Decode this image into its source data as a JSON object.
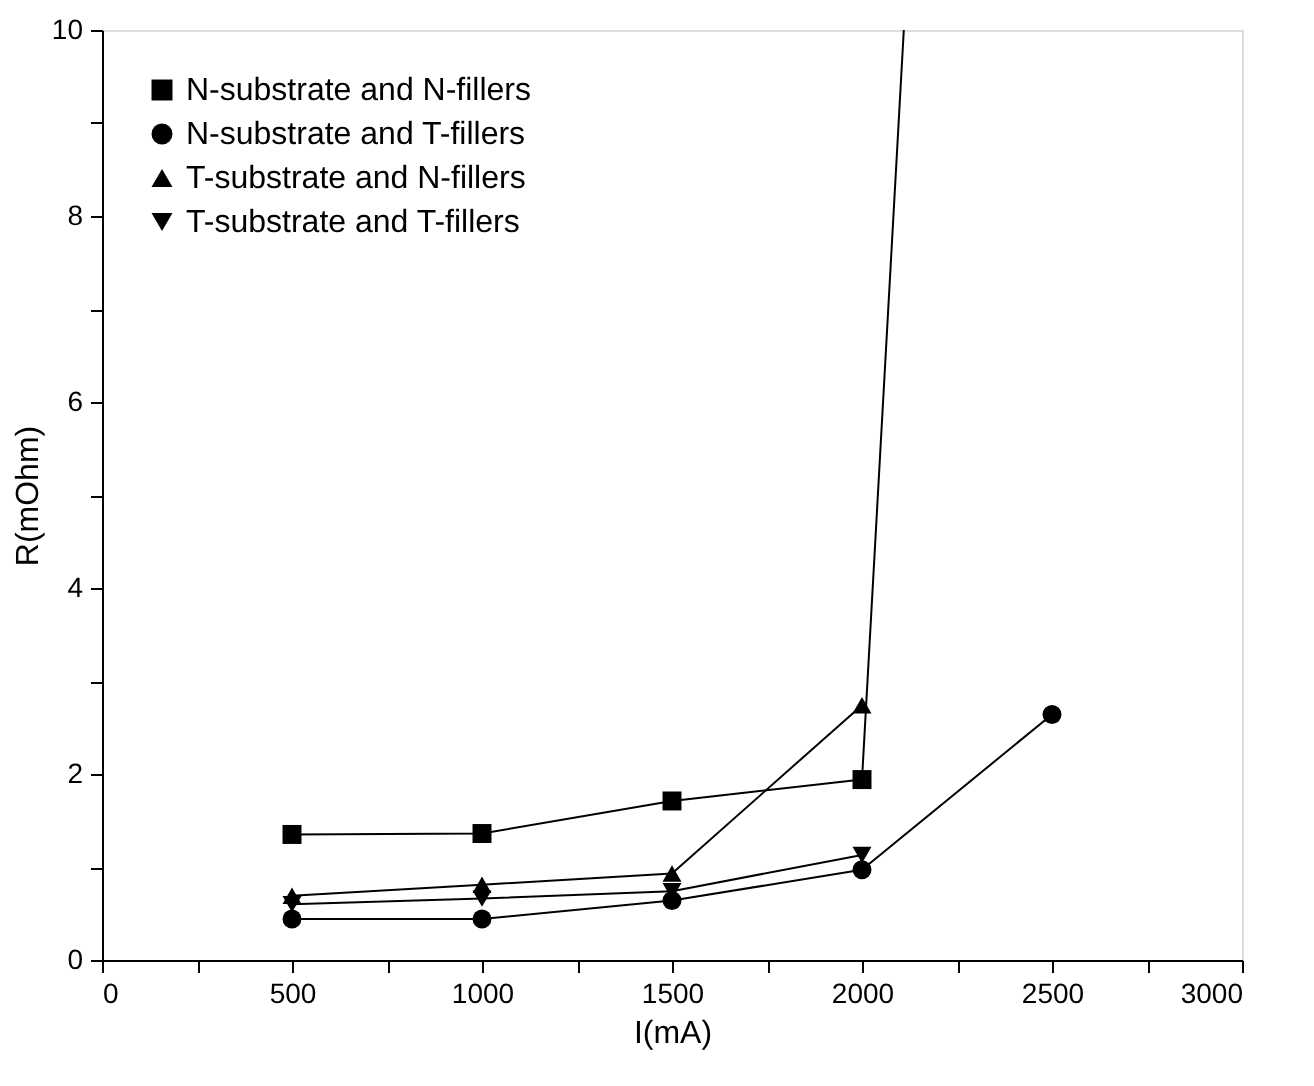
{
  "chart_data": {
    "type": "line",
    "xlabel": "I(mA)",
    "ylabel": "R(mOhm)",
    "xlim": [
      0,
      3000
    ],
    "ylim": [
      0,
      10
    ],
    "xticks": [
      0,
      {
        "value": 250,
        "label": null
      },
      500,
      {
        "value": 750,
        "label": null
      },
      1000,
      {
        "value": 1250,
        "label": null
      },
      1500,
      {
        "value": 1750,
        "label": null
      },
      2000,
      {
        "value": 2250,
        "label": null
      },
      2500,
      {
        "value": 2750,
        "label": null
      },
      3000
    ],
    "yticks": [
      0,
      {
        "value": 1,
        "label": null
      },
      2,
      {
        "value": 3,
        "label": null
      },
      4,
      {
        "value": 5,
        "label": null
      },
      6,
      {
        "value": 7,
        "label": null
      },
      8,
      {
        "value": 9,
        "label": null
      },
      10
    ],
    "grid": false,
    "legend": "top left",
    "line_style": "solid",
    "series": [
      {
        "name": "N-substrate and N-fillers",
        "color": "#000000",
        "marker": "square",
        "x": [
          500,
          1000,
          1500,
          2000,
          2110
        ],
        "values": [
          1.35,
          1.36,
          1.71,
          1.94,
          10
        ]
      },
      {
        "name": "N-substrate and T-fillers",
        "color": "#000000",
        "marker": "circle",
        "x": [
          500,
          1000,
          1500,
          2000,
          2500
        ],
        "values": [
          0.44,
          0.44,
          0.64,
          0.97,
          2.64
        ]
      },
      {
        "name": "T-substrate and N-fillers",
        "color": "#000000",
        "marker": "triangle",
        "x": [
          500,
          1000,
          1500,
          2000
        ],
        "values": [
          0.69,
          0.81,
          0.93,
          2.74
        ]
      },
      {
        "name": "T-substrate and T-fillers",
        "color": "#000000",
        "marker": "triangle-down",
        "x": [
          500,
          1000,
          1500,
          2000
        ],
        "values": [
          0.6,
          0.66,
          0.74,
          1.13
        ]
      }
    ]
  }
}
